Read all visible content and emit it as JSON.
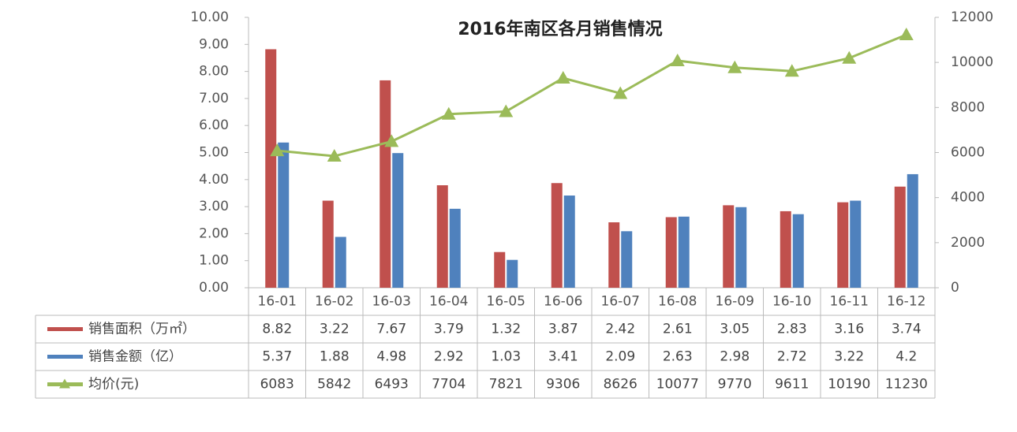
{
  "chart_data": {
    "type": "bar-line",
    "title": "2016年南区各月销售情况",
    "categories": [
      "16-01",
      "16-02",
      "16-03",
      "16-04",
      "16-05",
      "16-06",
      "16-07",
      "16-08",
      "16-09",
      "16-10",
      "16-11",
      "16-12"
    ],
    "series": [
      {
        "name": "销售面积（万㎡）",
        "type": "bar",
        "color": "#c0504d",
        "axis": "y",
        "values": [
          8.82,
          3.22,
          7.67,
          3.79,
          1.32,
          3.87,
          2.42,
          2.61,
          3.05,
          2.83,
          3.16,
          3.74
        ]
      },
      {
        "name": "销售金额（亿）",
        "type": "bar",
        "color": "#4f81bd",
        "axis": "y",
        "values": [
          5.37,
          1.88,
          4.98,
          2.92,
          1.03,
          3.41,
          2.09,
          2.63,
          2.98,
          2.72,
          3.22,
          4.2
        ]
      },
      {
        "name": "均价(元)",
        "type": "line",
        "color": "#9bbb59",
        "axis": "y2",
        "values": [
          6083,
          5842,
          6493,
          7704,
          7821,
          9306,
          8626,
          10077,
          9770,
          9611,
          10190,
          11230
        ]
      }
    ],
    "ylim": [
      0,
      10
    ],
    "yticks": [
      {
        "value": 0,
        "label": "0.00"
      },
      {
        "value": 1,
        "label": "1.00"
      },
      {
        "value": 2,
        "label": "2.00"
      },
      {
        "value": 3,
        "label": "3.00"
      },
      {
        "value": 4,
        "label": "4.00"
      },
      {
        "value": 5,
        "label": "5.00"
      },
      {
        "value": 6,
        "label": "6.00"
      },
      {
        "value": 7,
        "label": "7.00"
      },
      {
        "value": 8,
        "label": "8.00"
      },
      {
        "value": 9,
        "label": "9.00"
      },
      {
        "value": 10,
        "label": "10.00"
      }
    ],
    "y2lim": [
      0,
      12000
    ],
    "y2ticks": [
      0,
      2000,
      4000,
      6000,
      8000,
      10000,
      12000
    ]
  }
}
